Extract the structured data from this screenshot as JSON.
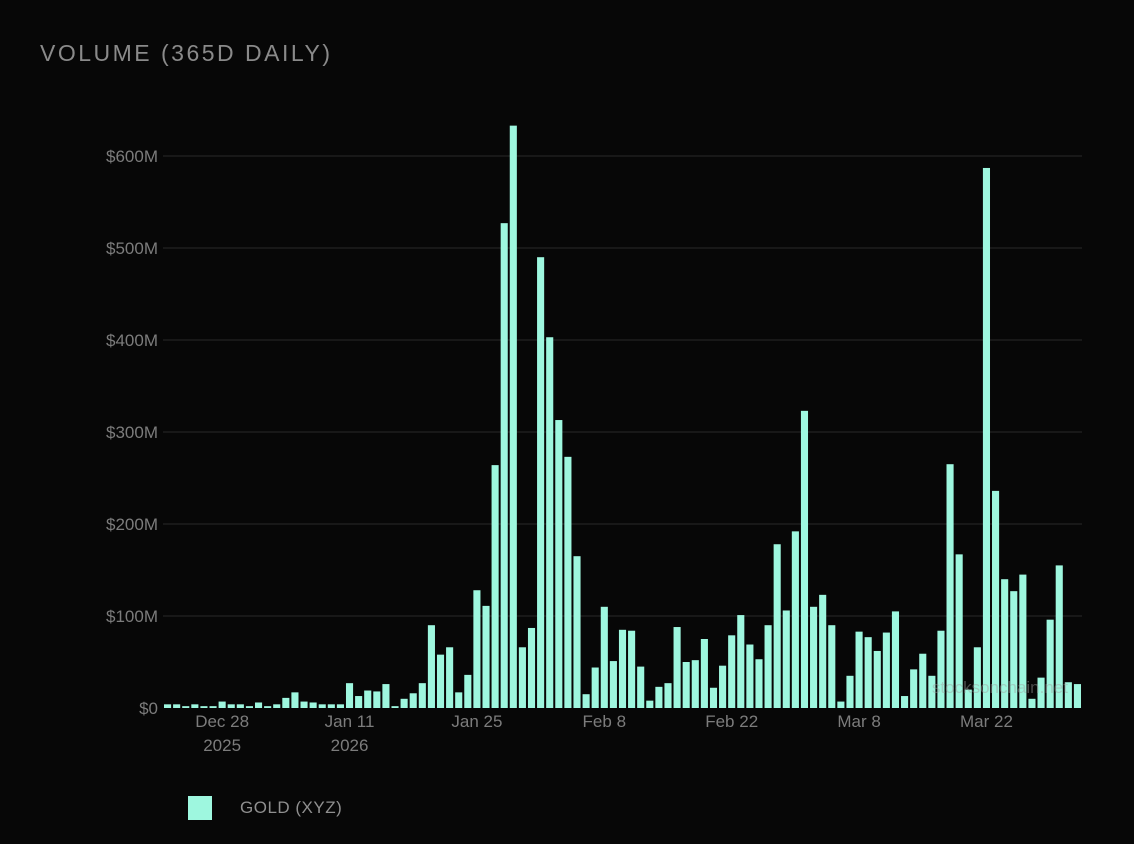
{
  "header": {
    "title": "VOLUME (365D DAILY)"
  },
  "legend": {
    "label": "GOLD (XYZ)",
    "swatch_color": "#9ef7df"
  },
  "watermark": "stocksonchain.net",
  "colors": {
    "background": "#070707",
    "bar": "#9ef7df",
    "grid": "#1f1f1f",
    "axis_text": "#7c7c7c"
  },
  "chart_data": {
    "type": "bar",
    "title": "VOLUME (365D DAILY)",
    "xlabel": "",
    "ylabel": "",
    "ylim": [
      0,
      650
    ],
    "y_unit": "$M",
    "grid": true,
    "legend_position": "bottom-left",
    "y_ticks": [
      {
        "value": 0,
        "label": "$0"
      },
      {
        "value": 100,
        "label": "$100M"
      },
      {
        "value": 200,
        "label": "$200M"
      },
      {
        "value": 300,
        "label": "$300M"
      },
      {
        "value": 400,
        "label": "$400M"
      },
      {
        "value": 500,
        "label": "$500M"
      },
      {
        "value": 600,
        "label": "$600M"
      }
    ],
    "x_ticks": [
      {
        "date": "2025-12-28",
        "line1": "Dec 28",
        "line2": "2025"
      },
      {
        "date": "2026-01-11",
        "line1": "Jan 11",
        "line2": "2026"
      },
      {
        "date": "2026-01-25",
        "line1": "Jan 25",
        "line2": ""
      },
      {
        "date": "2026-02-08",
        "line1": "Feb 8",
        "line2": ""
      },
      {
        "date": "2026-02-22",
        "line1": "Feb 22",
        "line2": ""
      },
      {
        "date": "2026-03-08",
        "line1": "Mar 8",
        "line2": ""
      },
      {
        "date": "2026-03-22",
        "line1": "Mar 22",
        "line2": ""
      }
    ],
    "x": [
      "2025-12-22",
      "2025-12-23",
      "2025-12-24",
      "2025-12-25",
      "2025-12-26",
      "2025-12-27",
      "2025-12-28",
      "2025-12-29",
      "2025-12-30",
      "2025-12-31",
      "2026-01-01",
      "2026-01-02",
      "2026-01-03",
      "2026-01-04",
      "2026-01-05",
      "2026-01-06",
      "2026-01-07",
      "2026-01-08",
      "2026-01-09",
      "2026-01-10",
      "2026-01-11",
      "2026-01-12",
      "2026-01-13",
      "2026-01-14",
      "2026-01-15",
      "2026-01-16",
      "2026-01-17",
      "2026-01-18",
      "2026-01-19",
      "2026-01-20",
      "2026-01-21",
      "2026-01-22",
      "2026-01-23",
      "2026-01-24",
      "2026-01-25",
      "2026-01-26",
      "2026-01-27",
      "2026-01-28",
      "2026-01-29",
      "2026-01-30",
      "2026-01-31",
      "2026-02-01",
      "2026-02-02",
      "2026-02-03",
      "2026-02-04",
      "2026-02-05",
      "2026-02-06",
      "2026-02-07",
      "2026-02-08",
      "2026-02-09",
      "2026-02-10",
      "2026-02-11",
      "2026-02-12",
      "2026-02-13",
      "2026-02-14",
      "2026-02-15",
      "2026-02-16",
      "2026-02-17",
      "2026-02-18",
      "2026-02-19",
      "2026-02-20",
      "2026-02-21",
      "2026-02-22",
      "2026-02-23",
      "2026-02-24",
      "2026-02-25",
      "2026-02-26",
      "2026-02-27",
      "2026-02-28",
      "2026-03-01",
      "2026-03-02",
      "2026-03-03",
      "2026-03-04",
      "2026-03-05",
      "2026-03-06",
      "2026-03-07",
      "2026-03-08",
      "2026-03-09",
      "2026-03-10",
      "2026-03-11",
      "2026-03-12",
      "2026-03-13",
      "2026-03-14",
      "2026-03-15",
      "2026-03-16",
      "2026-03-17",
      "2026-03-18",
      "2026-03-19",
      "2026-03-20",
      "2026-03-21",
      "2026-03-22",
      "2026-03-23",
      "2026-03-24",
      "2026-03-25",
      "2026-03-26",
      "2026-03-27",
      "2026-03-28",
      "2026-03-29",
      "2026-03-30",
      "2026-03-31",
      "2026-04-01"
    ],
    "series": [
      {
        "name": "GOLD (XYZ)",
        "values": [
          4,
          4,
          2,
          4,
          2,
          2,
          7,
          4,
          4,
          2,
          6,
          2,
          4,
          11,
          17,
          7,
          6,
          4,
          4,
          4,
          27,
          13,
          19,
          18,
          26,
          2,
          10,
          16,
          27,
          90,
          58,
          66,
          17,
          36,
          128,
          111,
          264,
          527,
          633,
          66,
          87,
          490,
          403,
          313,
          273,
          165,
          15,
          44,
          110,
          51,
          85,
          84,
          45,
          8,
          23,
          27,
          88,
          50,
          52,
          75,
          22,
          46,
          79,
          101,
          69,
          53,
          90,
          178,
          106,
          192,
          323,
          110,
          123,
          90,
          7,
          35,
          83,
          77,
          62,
          82,
          105,
          13,
          42,
          59,
          35,
          84,
          265,
          167,
          20,
          66,
          587,
          236,
          140,
          127,
          145,
          10,
          33,
          96,
          155,
          28,
          26
        ]
      }
    ]
  }
}
